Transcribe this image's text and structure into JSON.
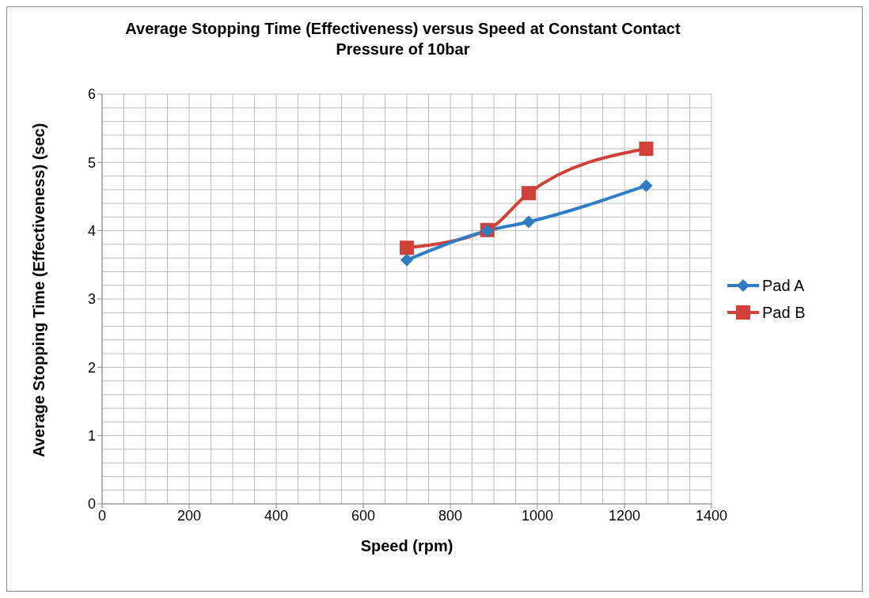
{
  "chart_data": {
    "type": "line",
    "title": "Average Stopping Time (Effectiveness) versus Speed at Constant Contact Pressure of 10bar",
    "xlabel": "Speed (rpm)",
    "ylabel": "Average Stopping Time (Effectiveness) (sec)",
    "x": [
      700,
      885,
      980,
      1250
    ],
    "series": [
      {
        "name": "Pad A",
        "color": "#2e7dc4",
        "marker": "diamond",
        "values": [
          3.57,
          4.0,
          4.13,
          4.66
        ]
      },
      {
        "name": "Pad B",
        "color": "#d0413a",
        "marker": "square",
        "values": [
          3.75,
          4.01,
          4.55,
          5.2
        ]
      }
    ],
    "xlim": [
      0,
      1400
    ],
    "xticks": [
      0,
      200,
      400,
      600,
      800,
      1000,
      1200,
      1400
    ],
    "ylim": [
      0,
      6
    ],
    "yticks": [
      0,
      1,
      2,
      3,
      4,
      5,
      6
    ],
    "grid": true,
    "legend": "right"
  }
}
